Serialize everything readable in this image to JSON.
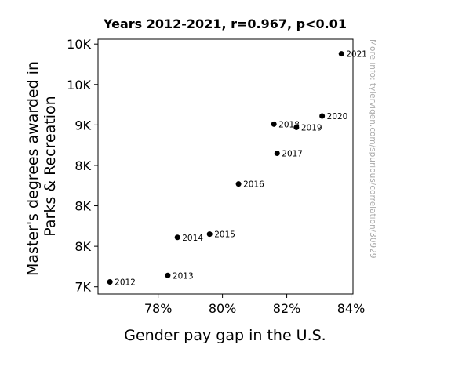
{
  "chart_data": {
    "type": "scatter",
    "title": "Years 2012-2021, r=0.967, p<0.01",
    "xlabel": "Gender pay gap in the U.S.",
    "ylabel": [
      "Master's degrees awarded in",
      "Parks & Recreation"
    ],
    "watermark": "More info: tylervigen.com/spurious/correlation/30929",
    "x_ticks": [
      {
        "value": 0.78,
        "label": "78%"
      },
      {
        "value": 0.8,
        "label": "80%"
      },
      {
        "value": 0.82,
        "label": "82%"
      },
      {
        "value": 0.84,
        "label": "84%"
      }
    ],
    "y_ticks": [
      {
        "value": 7000,
        "label": "7K"
      },
      {
        "value": 7500,
        "label": "8K"
      },
      {
        "value": 8000,
        "label": "8K"
      },
      {
        "value": 8500,
        "label": "8K"
      },
      {
        "value": 9000,
        "label": "9K"
      },
      {
        "value": 9500,
        "label": "10K"
      },
      {
        "value": 10000,
        "label": "10K"
      }
    ],
    "xlim": [
      0.7613,
      0.8406
    ],
    "ylim": [
      6910,
      10060
    ],
    "points": [
      {
        "x": 0.765,
        "y": 7060,
        "label": "2012"
      },
      {
        "x": 0.783,
        "y": 7140,
        "label": "2013"
      },
      {
        "x": 0.786,
        "y": 7610,
        "label": "2014"
      },
      {
        "x": 0.796,
        "y": 7650,
        "label": "2015"
      },
      {
        "x": 0.805,
        "y": 8270,
        "label": "2016"
      },
      {
        "x": 0.817,
        "y": 8650,
        "label": "2017"
      },
      {
        "x": 0.816,
        "y": 9010,
        "label": "2018"
      },
      {
        "x": 0.823,
        "y": 8970,
        "label": "2019"
      },
      {
        "x": 0.831,
        "y": 9110,
        "label": "2020"
      },
      {
        "x": 0.837,
        "y": 9880,
        "label": "2021"
      }
    ],
    "point_color": "#000000",
    "grid": false
  }
}
